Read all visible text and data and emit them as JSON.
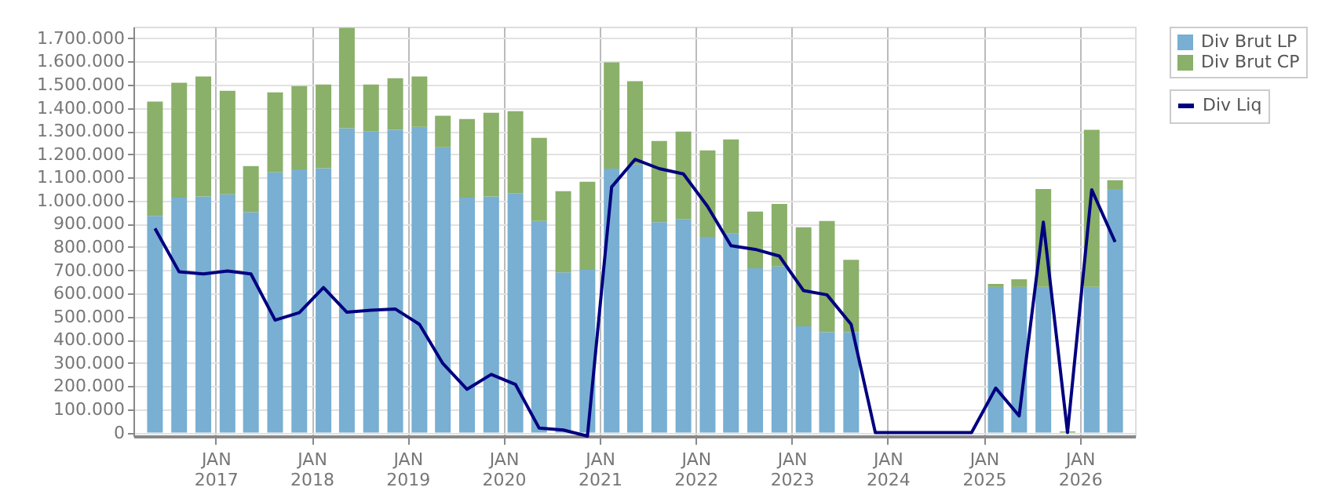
{
  "chart_data": {
    "type": "bar",
    "stacked": true,
    "legend": "top right",
    "grid": true,
    "x": [
      "2016-05-15",
      "2016-08-15",
      "2016-11-15",
      "2017-02-15",
      "2017-05-15",
      "2017-08-15",
      "2017-11-15",
      "2018-02-15",
      "2018-05-15",
      "2018-08-15",
      "2018-11-15",
      "2019-02-15",
      "2019-05-15",
      "2019-08-15",
      "2019-11-15",
      "2020-02-15",
      "2020-05-15",
      "2020-08-15",
      "2020-11-15",
      "2021-02-15",
      "2021-05-15",
      "2021-08-15",
      "2021-11-15",
      "2022-02-15",
      "2022-05-15",
      "2022-08-15",
      "2022-11-15",
      "2023-02-15",
      "2023-05-15",
      "2023-08-15",
      "2023-11-15",
      "2024-02-15",
      "2024-05-15",
      "2024-08-15",
      "2024-11-15",
      "2025-02-15",
      "2025-05-15",
      "2025-08-15",
      "2025-11-15",
      "2026-02-15",
      "2026-05-15"
    ],
    "series": [
      {
        "name": "Div Brut LP",
        "color": "#78afd2",
        "values": [
          934000,
          1013000,
          1018000,
          1027000,
          950000,
          1122000,
          1135000,
          1140000,
          1312000,
          1298000,
          1305000,
          1318000,
          1230000,
          1013000,
          1018000,
          1032000,
          912000,
          691000,
          702000,
          1138000,
          1156000,
          907000,
          921000,
          844000,
          858000,
          709000,
          716000,
          458000,
          433000,
          433000,
          null,
          null,
          null,
          null,
          null,
          628000,
          628000,
          628000,
          0,
          628000,
          1047000
        ]
      },
      {
        "name": "Div Brut CP",
        "color": "#8ab06a",
        "values": [
          493000,
          495000,
          517000,
          447000,
          199000,
          345000,
          359000,
          361000,
          433000,
          203000,
          223000,
          217000,
          136000,
          339000,
          361000,
          354000,
          359000,
          350000,
          379000,
          458000,
          359000,
          350000,
          377000,
          373000,
          406000,
          244000,
          270000,
          427000,
          479000,
          312000,
          null,
          null,
          null,
          null,
          null,
          13000,
          33000,
          422000,
          5000,
          677000,
          41000
        ]
      },
      {
        "name": "Div Liq",
        "type": "line",
        "color": "#000080",
        "values": [
          880000,
          693000,
          684000,
          697000,
          684000,
          485000,
          517000,
          625000,
          519000,
          528000,
          533000,
          467000,
          298000,
          187000,
          251000,
          208000,
          20000,
          11000,
          -15000,
          1059000,
          1178000,
          1138000,
          1115000,
          975000,
          806000,
          790000,
          761000,
          612000,
          594000,
          467000,
          0,
          0,
          0,
          0,
          0,
          192000,
          72000,
          907000,
          0,
          1047000,
          822000
        ]
      }
    ],
    "xlim": [
      "2016-03-24",
      "2026-06-30"
    ],
    "xticks": [
      {
        "value": "2017-01-01",
        "label": "JAN 2017"
      },
      {
        "value": "2018-01-01",
        "label": "JAN 2018"
      },
      {
        "value": "2019-01-01",
        "label": "JAN 2019"
      },
      {
        "value": "2020-01-01",
        "label": "JAN 2020"
      },
      {
        "value": "2021-01-01",
        "label": "JAN 2021"
      },
      {
        "value": "2022-01-01",
        "label": "JAN 2022"
      },
      {
        "value": "2023-01-01",
        "label": "JAN 2023"
      },
      {
        "value": "2024-01-01",
        "label": "JAN 2024"
      },
      {
        "value": "2025-01-01",
        "label": "JAN 2025"
      },
      {
        "value": "2026-01-01",
        "label": "JAN 2026"
      }
    ],
    "ylim": [
      -15000,
      1750000
    ],
    "yticks": [
      0,
      {
        "value": 100000,
        "label": "100.000"
      },
      {
        "value": 200000,
        "label": "200.000"
      },
      {
        "value": 300000,
        "label": "300.000"
      },
      {
        "value": 400000,
        "label": "400.000"
      },
      {
        "value": 500000,
        "label": "500.000"
      },
      {
        "value": 600000,
        "label": "600.000"
      },
      {
        "value": 700000,
        "label": "700.000"
      },
      {
        "value": 800000,
        "label": "800.000"
      },
      {
        "value": 900000,
        "label": "900.000"
      },
      {
        "value": 1000000,
        "label": "1.000.000"
      },
      {
        "value": 1100000,
        "label": "1.100.000"
      },
      {
        "value": 1200000,
        "label": "1.200.000"
      },
      {
        "value": 1300000,
        "label": "1.300.000"
      },
      {
        "value": 1400000,
        "label": "1.400.000"
      },
      {
        "value": 1500000,
        "label": "1.500.000"
      },
      {
        "value": 1600000,
        "label": "1.600.000"
      },
      {
        "value": 1700000,
        "label": "1.700.000"
      }
    ]
  }
}
